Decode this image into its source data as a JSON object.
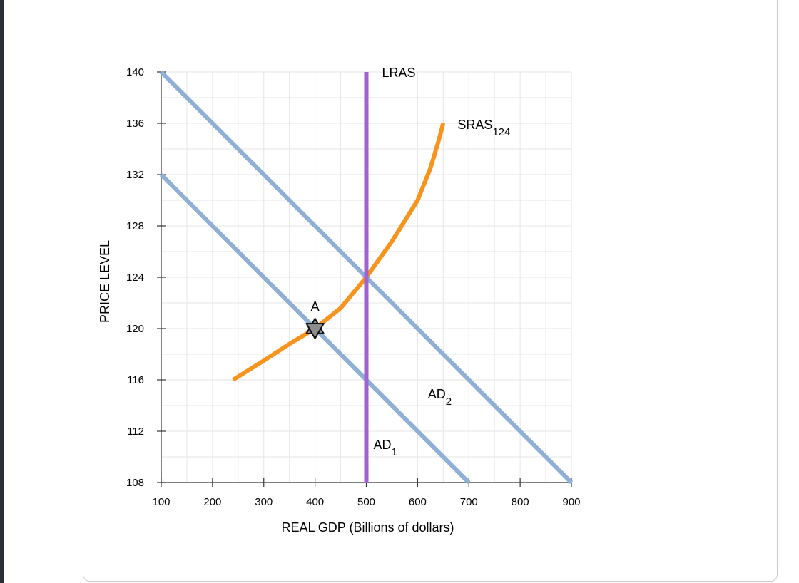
{
  "chart_data": {
    "type": "line",
    "xlabel": "REAL GDP (Billions of dollars)",
    "ylabel": "PRICE LEVEL",
    "xlim": [
      100,
      900
    ],
    "ylim": [
      108,
      140
    ],
    "xticks": [
      100,
      200,
      300,
      400,
      500,
      600,
      700,
      800,
      900
    ],
    "yticks": [
      108,
      112,
      116,
      120,
      124,
      128,
      132,
      136,
      140
    ],
    "grid": true,
    "series": [
      {
        "name": "LRAS",
        "label_main": "LRAS",
        "label_sub": "",
        "color": "#a35fd6",
        "points": [
          [
            500,
            108
          ],
          [
            500,
            140
          ]
        ]
      },
      {
        "name": "SRAS124",
        "label_main": "SRAS",
        "label_sub": "124",
        "color": "#f7941d",
        "points": [
          [
            240,
            116
          ],
          [
            300,
            117.5
          ],
          [
            350,
            118.8
          ],
          [
            400,
            120
          ],
          [
            450,
            121.6
          ],
          [
            500,
            124
          ],
          [
            550,
            126.8
          ],
          [
            600,
            130
          ],
          [
            625,
            132.5
          ],
          [
            640,
            134.5
          ],
          [
            650,
            136
          ]
        ]
      },
      {
        "name": "AD1",
        "label_main": "AD",
        "label_sub": "1",
        "color": "#8fb0d4",
        "points": [
          [
            100,
            132
          ],
          [
            700,
            108
          ]
        ]
      },
      {
        "name": "AD2",
        "label_main": "AD",
        "label_sub": "2",
        "color": "#8fb0d4",
        "points": [
          [
            100,
            140
          ],
          [
            900,
            108
          ]
        ]
      }
    ],
    "points": [
      {
        "name": "A",
        "label": "A",
        "x": 400,
        "y": 120
      }
    ]
  }
}
